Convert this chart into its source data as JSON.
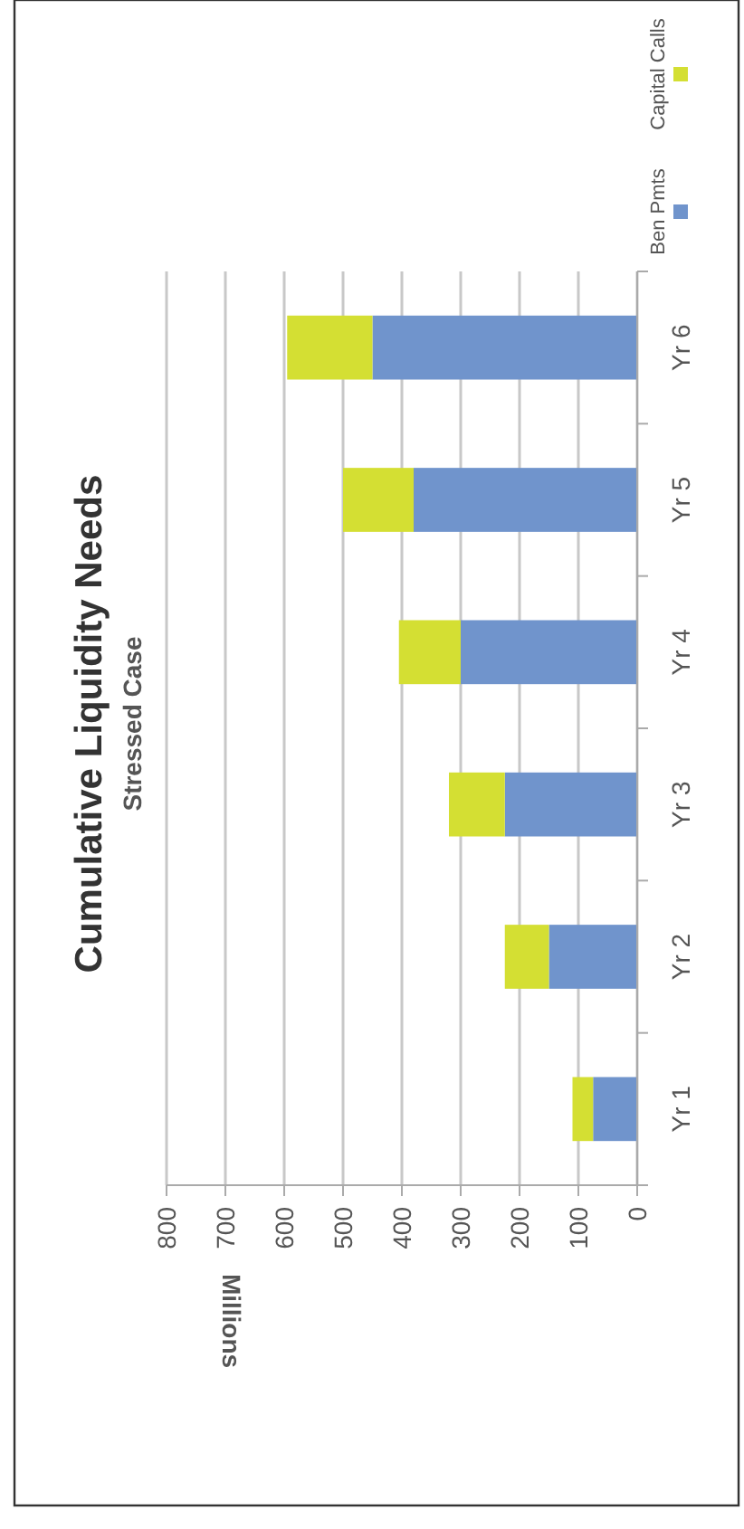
{
  "chart_data": {
    "type": "bar",
    "orientation": "horizontal",
    "title": "Cumulative Liquidity Needs",
    "subtitle": "Stressed Case",
    "annotations": [
      "Millions"
    ],
    "categories": [
      "Yr 6",
      "Yr 5",
      "Yr 4",
      "Yr 3",
      "Yr 2",
      "Yr 1"
    ],
    "stacked": true,
    "series": [
      {
        "name": "Ben Pmts",
        "color": "#7094cc",
        "values": [
          450,
          380,
          300,
          225,
          150,
          75
        ]
      },
      {
        "name": "Capital Calls",
        "color": "#d4df33",
        "values": [
          145,
          120,
          105,
          95,
          75,
          35
        ]
      }
    ],
    "xlim": [
      800,
      0
    ],
    "xticks": [
      800,
      700,
      600,
      500,
      400,
      300,
      200,
      100,
      0
    ],
    "grid": true,
    "legend": "right"
  }
}
